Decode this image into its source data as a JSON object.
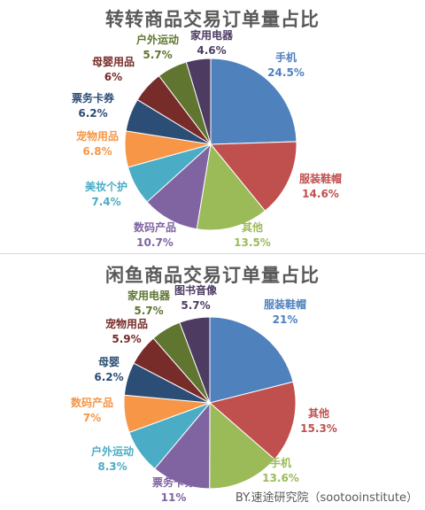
{
  "chart_data": [
    {
      "type": "pie",
      "title": "转转商品交易订单量占比",
      "slices": [
        {
          "name": "手机",
          "value": 24.5,
          "label": "24.5%",
          "color": "#4f81bd"
        },
        {
          "name": "服装鞋帽",
          "value": 14.6,
          "label": "14.6%",
          "color": "#c0504d"
        },
        {
          "name": "其他",
          "value": 13.5,
          "label": "13.5%",
          "color": "#9bbb59"
        },
        {
          "name": "数码产品",
          "value": 10.7,
          "label": "10.7%",
          "color": "#8064a2"
        },
        {
          "name": "美妆个护",
          "value": 7.4,
          "label": "7.4%",
          "color": "#4bacc6"
        },
        {
          "name": "宠物用品",
          "value": 6.8,
          "label": "6.8%",
          "color": "#f79646"
        },
        {
          "name": "票务卡券",
          "value": 6.2,
          "label": "6.2%",
          "color": "#2c4d75"
        },
        {
          "name": "母婴用品",
          "value": 6,
          "label": "6%",
          "color": "#772c2a"
        },
        {
          "name": "户外运动",
          "value": 5.7,
          "label": "5.7%",
          "color": "#5f7530"
        },
        {
          "name": "家用电器",
          "value": 4.6,
          "label": "4.6%",
          "color": "#4d3b62"
        }
      ]
    },
    {
      "type": "pie",
      "title": "闲鱼商品交易订单量占比",
      "slices": [
        {
          "name": "服装鞋帽",
          "value": 21,
          "label": "21%",
          "color": "#4f81bd"
        },
        {
          "name": "其他",
          "value": 15.3,
          "label": "15.3%",
          "color": "#c0504d"
        },
        {
          "name": "手机",
          "value": 13.6,
          "label": "13.6%",
          "color": "#9bbb59"
        },
        {
          "name": "票务卡券",
          "value": 11,
          "label": "11%",
          "color": "#8064a2"
        },
        {
          "name": "户外运动",
          "value": 8.3,
          "label": "8.3%",
          "color": "#4bacc6"
        },
        {
          "name": "数码产品",
          "value": 7,
          "label": "7%",
          "color": "#f79646"
        },
        {
          "name": "母婴",
          "value": 6.2,
          "label": "6.2%",
          "color": "#2c4d75"
        },
        {
          "name": "宠物用品",
          "value": 5.9,
          "label": "5.9%",
          "color": "#772c2a"
        },
        {
          "name": "家用电器",
          "value": 5.7,
          "label": "5.7%",
          "color": "#5f7530"
        },
        {
          "name": "图书音像",
          "value": 5.7,
          "label": "5.7%",
          "color": "#4d3b62"
        }
      ]
    }
  ],
  "credit": "BY.速途研究院（sootooinstitute）"
}
